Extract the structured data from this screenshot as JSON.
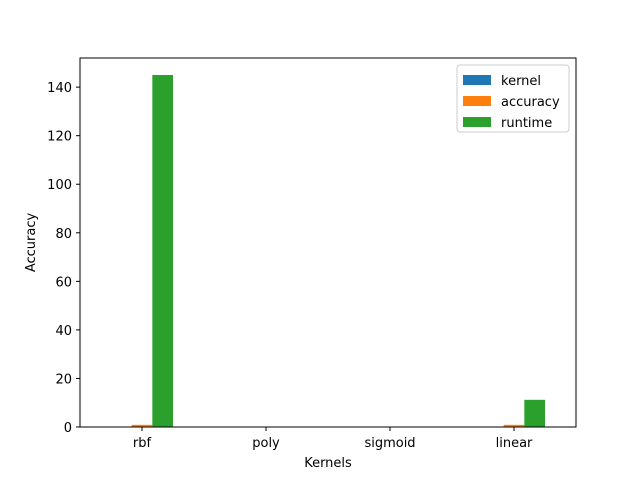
{
  "chart_data": {
    "type": "bar",
    "title": "",
    "xlabel": "Kernels",
    "ylabel": "Accuracy",
    "categories": [
      "rbf",
      "poly",
      "sigmoid",
      "linear"
    ],
    "ylim": [
      0,
      152
    ],
    "yticks": [
      0,
      20,
      40,
      60,
      80,
      100,
      120,
      140
    ],
    "grid": false,
    "legend_position": "top-right",
    "series": [
      {
        "name": "kernel",
        "color": "#1f77b4",
        "values": [
          0,
          0,
          0,
          0
        ]
      },
      {
        "name": "accuracy",
        "color": "#ff7f0e",
        "values": [
          0.9,
          0,
          0,
          0.9
        ]
      },
      {
        "name": "runtime",
        "color": "#2ca02c",
        "values": [
          145,
          0,
          0,
          11.2
        ]
      }
    ]
  }
}
